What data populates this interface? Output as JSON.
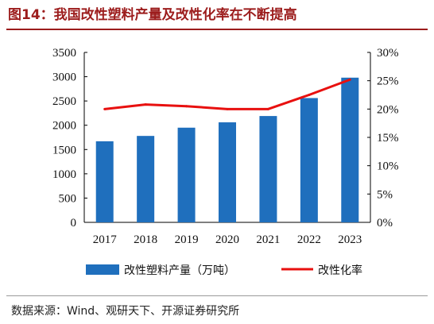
{
  "figure": {
    "title": "图14：我国改性塑料产量及改性化率在不断提高",
    "source": "数据来源：Wind、观研天下、开源证券研究所"
  },
  "chart_data": {
    "type": "bar",
    "categories": [
      "2017",
      "2018",
      "2019",
      "2020",
      "2021",
      "2022",
      "2023"
    ],
    "series": [
      {
        "name": "改性塑料产量（万吨）",
        "type": "bar",
        "axis": "left",
        "color": "#1f6fbd",
        "values": [
          1670,
          1780,
          1950,
          2060,
          2190,
          2560,
          2980
        ]
      },
      {
        "name": "改性化率",
        "type": "line",
        "axis": "right",
        "color": "#e8100f",
        "values": [
          20.0,
          20.8,
          20.5,
          20.0,
          20.0,
          22.5,
          25.2
        ]
      }
    ],
    "y_left": {
      "lim": [
        0,
        3500
      ],
      "ticks": [
        "0",
        "500",
        "1000",
        "1500",
        "2000",
        "2500",
        "3000",
        "3500"
      ]
    },
    "y_right": {
      "lim": [
        0,
        30
      ],
      "ticks": [
        "0%",
        "5%",
        "10%",
        "15%",
        "20%",
        "25%",
        "30%"
      ]
    },
    "legend_position": "bottom",
    "grid": false
  }
}
